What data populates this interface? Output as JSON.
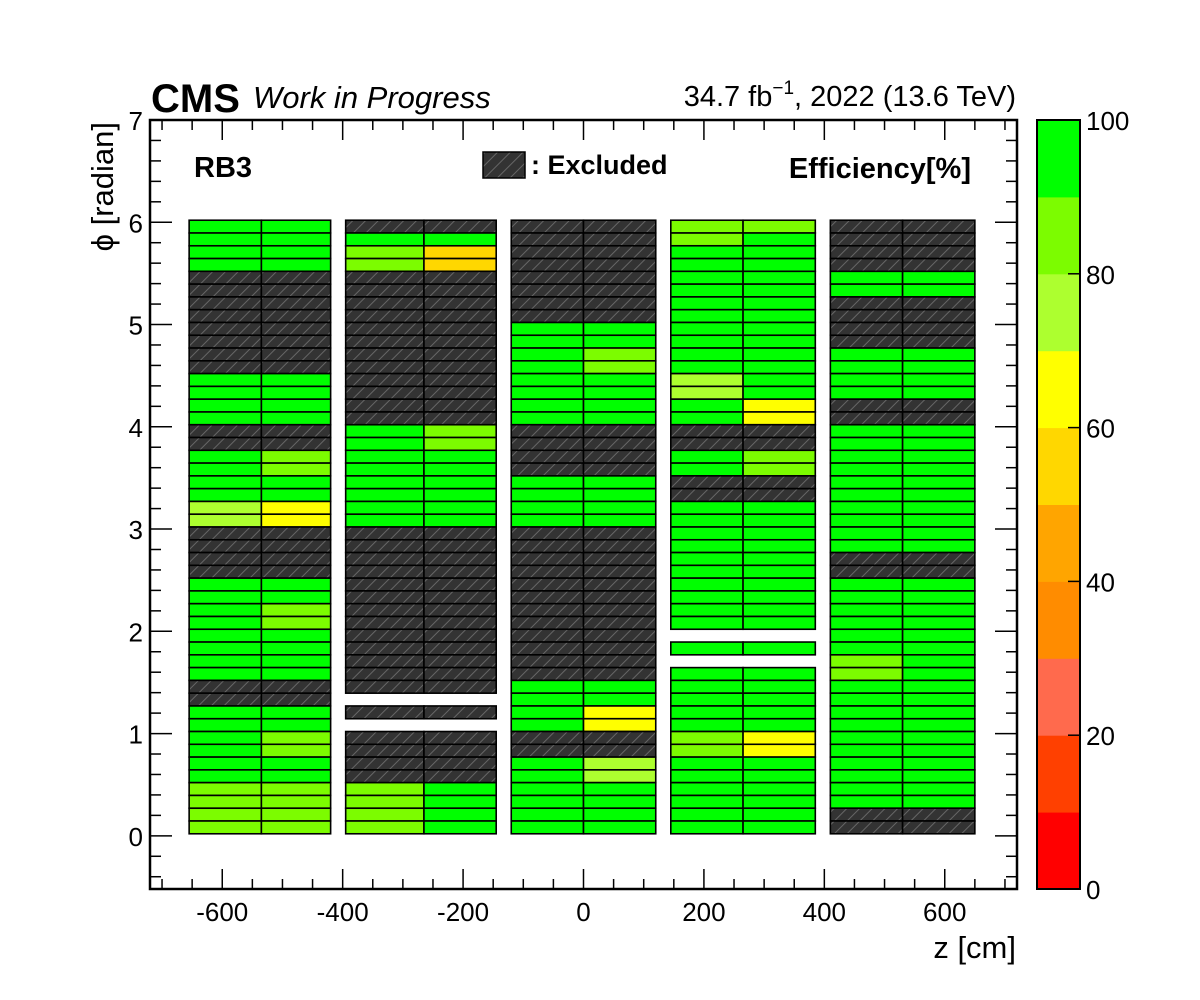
{
  "chart_data": {
    "type": "heatmap",
    "title": "RB3",
    "brand": "CMS",
    "status": "Work in Progress",
    "lumi_label": "34.7 fb",
    "lumi_exp": "−1",
    "lumi_suffix": ", 2022 (13.6 TeV)",
    "xlabel": "z [cm]",
    "ylabel": "ϕ [radian]",
    "zlabel": "Efficiency[%]",
    "legend_excluded": ": Excluded",
    "xlim": [
      -720,
      720
    ],
    "ylim": [
      -0.52,
      7
    ],
    "zlim": [
      0,
      100
    ],
    "x_ticks": [
      -600,
      -400,
      -200,
      0,
      200,
      400,
      600
    ],
    "x_tick_labels": [
      "-600",
      "-400",
      "-200",
      "0",
      "200",
      "400",
      "600"
    ],
    "y_ticks": [
      0,
      1,
      2,
      3,
      4,
      5,
      6,
      7
    ],
    "y_tick_labels": [
      "0",
      "1",
      "2",
      "3",
      "4",
      "5",
      "6",
      "7"
    ],
    "z_ticks": [
      0,
      20,
      40,
      60,
      80,
      100
    ],
    "z_tick_labels": [
      "0",
      "20",
      "40",
      "60",
      "80",
      "100"
    ],
    "palette": [
      "#ff0000",
      "#ff4000",
      "#ff6a4d",
      "#ff8c00",
      "#ffa500",
      "#ffd700",
      "#ffff00",
      "#adff2f",
      "#7cfc00",
      "#00ff00"
    ],
    "excluded_color": "#333333",
    "wheels": [
      {
        "z": [
          -655,
          -535,
          -420
        ]
      },
      {
        "z": [
          -395,
          -265,
          -145
        ]
      },
      {
        "z": [
          -120,
          0,
          120
        ]
      },
      {
        "z": [
          145,
          265,
          385
        ]
      },
      {
        "z": [
          410,
          530,
          650
        ]
      }
    ],
    "rows": [
      {
        "y": [
          5.77,
          6.02
        ],
        "cells": [
          [
            95,
            95,
            95,
            95
          ],
          [
            "X",
            "X",
            95,
            95
          ],
          [
            "X",
            "X",
            "X",
            "X"
          ],
          [
            85,
            85,
            85,
            95
          ],
          [
            "X",
            "X",
            "X",
            "X"
          ]
        ]
      },
      {
        "y": [
          5.52,
          5.77
        ],
        "cells": [
          [
            95,
            95,
            95,
            95
          ],
          [
            85,
            55,
            85,
            55
          ],
          [
            "X",
            "X",
            "X",
            "X"
          ],
          [
            95,
            95,
            95,
            95
          ],
          [
            "X",
            "X",
            "X",
            "X"
          ]
        ]
      },
      {
        "y": [
          5.27,
          5.52
        ],
        "cells": [
          [
            "X",
            "X",
            "X",
            "X"
          ],
          [
            "X",
            "X",
            "X",
            "X"
          ],
          [
            "X",
            "X",
            "X",
            "X"
          ],
          [
            95,
            95,
            95,
            95
          ],
          [
            95,
            95,
            95,
            95
          ]
        ]
      },
      {
        "y": [
          5.02,
          5.27
        ],
        "cells": [
          [
            "X",
            "X",
            "X",
            "X"
          ],
          [
            "X",
            "X",
            "X",
            "X"
          ],
          [
            "X",
            "X",
            "X",
            "X"
          ],
          [
            95,
            95,
            95,
            95
          ],
          [
            "X",
            "X",
            "X",
            "X"
          ]
        ]
      },
      {
        "y": [
          4.77,
          5.02
        ],
        "cells": [
          [
            "X",
            "X",
            "X",
            "X"
          ],
          [
            "X",
            "X",
            "X",
            "X"
          ],
          [
            95,
            95,
            95,
            95
          ],
          [
            95,
            95,
            95,
            95
          ],
          [
            "X",
            "X",
            "X",
            "X"
          ]
        ]
      },
      {
        "y": [
          4.52,
          4.77
        ],
        "cells": [
          [
            "X",
            "X",
            "X",
            "X"
          ],
          [
            "X",
            "X",
            "X",
            "X"
          ],
          [
            95,
            85,
            95,
            85
          ],
          [
            95,
            95,
            95,
            95
          ],
          [
            95,
            95,
            95,
            95
          ]
        ]
      },
      {
        "y": [
          4.27,
          4.52
        ],
        "cells": [
          [
            95,
            95,
            95,
            95
          ],
          [
            "X",
            "X",
            "X",
            "X"
          ],
          [
            95,
            95,
            95,
            95
          ],
          [
            75,
            95,
            75,
            95
          ],
          [
            95,
            95,
            95,
            95
          ]
        ]
      },
      {
        "y": [
          4.02,
          4.27
        ],
        "cells": [
          [
            95,
            95,
            95,
            95
          ],
          [
            "X",
            "X",
            "X",
            "X"
          ],
          [
            95,
            95,
            95,
            95
          ],
          [
            95,
            65,
            95,
            65
          ],
          [
            "X",
            "X",
            "X",
            "X"
          ]
        ]
      },
      {
        "y": [
          3.77,
          4.02
        ],
        "cells": [
          [
            "X",
            "X",
            "X",
            "X"
          ],
          [
            95,
            85,
            95,
            85
          ],
          [
            "X",
            "X",
            "X",
            "X"
          ],
          [
            "X",
            "X",
            "X",
            "X"
          ],
          [
            95,
            95,
            95,
            95
          ]
        ]
      },
      {
        "y": [
          3.52,
          3.77
        ],
        "cells": [
          [
            95,
            85,
            95,
            85
          ],
          [
            95,
            95,
            95,
            95
          ],
          [
            "X",
            "X",
            "X",
            "X"
          ],
          [
            95,
            85,
            95,
            85
          ],
          [
            95,
            95,
            95,
            95
          ]
        ]
      },
      {
        "y": [
          3.27,
          3.52
        ],
        "cells": [
          [
            95,
            95,
            95,
            95
          ],
          [
            95,
            95,
            95,
            95
          ],
          [
            95,
            95,
            95,
            95
          ],
          [
            "X",
            "X",
            "X",
            "X"
          ],
          [
            95,
            95,
            95,
            95
          ]
        ]
      },
      {
        "y": [
          3.02,
          3.27
        ],
        "cells": [
          [
            75,
            65,
            75,
            65
          ],
          [
            95,
            95,
            95,
            95
          ],
          [
            95,
            95,
            95,
            95
          ],
          [
            95,
            95,
            95,
            95
          ],
          [
            95,
            95,
            95,
            95
          ]
        ]
      },
      {
        "y": [
          2.77,
          3.02
        ],
        "cells": [
          [
            "X",
            "X",
            "X",
            "X"
          ],
          [
            "X",
            "X",
            "X",
            "X"
          ],
          [
            "X",
            "X",
            "X",
            "X"
          ],
          [
            95,
            95,
            95,
            95
          ],
          [
            95,
            95,
            95,
            95
          ]
        ]
      },
      {
        "y": [
          2.52,
          2.77
        ],
        "cells": [
          [
            "X",
            "X",
            "X",
            "X"
          ],
          [
            "X",
            "X",
            "X",
            "X"
          ],
          [
            "X",
            "X",
            "X",
            "X"
          ],
          [
            95,
            95,
            95,
            95
          ],
          [
            "X",
            "X",
            "X",
            "X"
          ]
        ]
      },
      {
        "y": [
          2.27,
          2.52
        ],
        "cells": [
          [
            95,
            95,
            95,
            95
          ],
          [
            "X",
            "X",
            "X",
            "X"
          ],
          [
            "X",
            "X",
            "X",
            "X"
          ],
          [
            95,
            95,
            95,
            95
          ],
          [
            95,
            95,
            95,
            95
          ]
        ]
      },
      {
        "y": [
          2.02,
          2.27
        ],
        "cells": [
          [
            95,
            85,
            95,
            85
          ],
          [
            "X",
            "X",
            "X",
            "X"
          ],
          [
            "X",
            "X",
            "X",
            "X"
          ],
          [
            95,
            95,
            95,
            95
          ],
          [
            95,
            95,
            95,
            95
          ]
        ]
      },
      {
        "y": [
          1.77,
          2.02
        ],
        "cells": [
          [
            95,
            95,
            95,
            95
          ],
          [
            "X",
            "X",
            "X",
            "X"
          ],
          [
            "X",
            "X",
            "X",
            "X"
          ],
          [
            null,
            null,
            95,
            95
          ],
          [
            95,
            95,
            95,
            95
          ]
        ]
      },
      {
        "y": [
          1.52,
          1.77
        ],
        "cells": [
          [
            95,
            95,
            95,
            95
          ],
          [
            "X",
            "X",
            "X",
            "X"
          ],
          [
            "X",
            "X",
            "X",
            "X"
          ],
          [
            null,
            null,
            95,
            95
          ],
          [
            85,
            95,
            85,
            95
          ]
        ]
      },
      {
        "y": [
          1.27,
          1.52
        ],
        "cells": [
          [
            "X",
            "X",
            "X",
            "X"
          ],
          [
            "X",
            "X",
            null,
            null
          ],
          [
            95,
            95,
            95,
            95
          ],
          [
            95,
            95,
            95,
            95
          ],
          [
            95,
            95,
            95,
            95
          ]
        ]
      },
      {
        "y": [
          1.02,
          1.27
        ],
        "cells": [
          [
            95,
            95,
            95,
            95
          ],
          [
            "X",
            "X",
            null,
            null
          ],
          [
            95,
            65,
            95,
            65
          ],
          [
            95,
            95,
            95,
            95
          ],
          [
            95,
            95,
            95,
            95
          ]
        ]
      },
      {
        "y": [
          0.77,
          1.02
        ],
        "cells": [
          [
            95,
            85,
            95,
            85
          ],
          [
            "X",
            "X",
            "X",
            "X"
          ],
          [
            "X",
            "X",
            "X",
            "X"
          ],
          [
            85,
            65,
            85,
            65
          ],
          [
            95,
            95,
            95,
            95
          ]
        ]
      },
      {
        "y": [
          0.52,
          0.77
        ],
        "cells": [
          [
            95,
            95,
            95,
            95
          ],
          [
            "X",
            "X",
            "X",
            "X"
          ],
          [
            95,
            75,
            95,
            75
          ],
          [
            95,
            95,
            95,
            95
          ],
          [
            95,
            95,
            95,
            95
          ]
        ]
      },
      {
        "y": [
          0.27,
          0.52
        ],
        "cells": [
          [
            85,
            85,
            85,
            85
          ],
          [
            85,
            95,
            85,
            95
          ],
          [
            95,
            95,
            95,
            95
          ],
          [
            95,
            95,
            95,
            95
          ],
          [
            95,
            95,
            95,
            95
          ]
        ]
      },
      {
        "y": [
          0.02,
          0.27
        ],
        "cells": [
          [
            85,
            85,
            85,
            85
          ],
          [
            85,
            95,
            85,
            95
          ],
          [
            95,
            95,
            95,
            95
          ],
          [
            95,
            95,
            95,
            95
          ],
          [
            "X",
            "X",
            "X",
            "X"
          ]
        ]
      }
    ]
  }
}
